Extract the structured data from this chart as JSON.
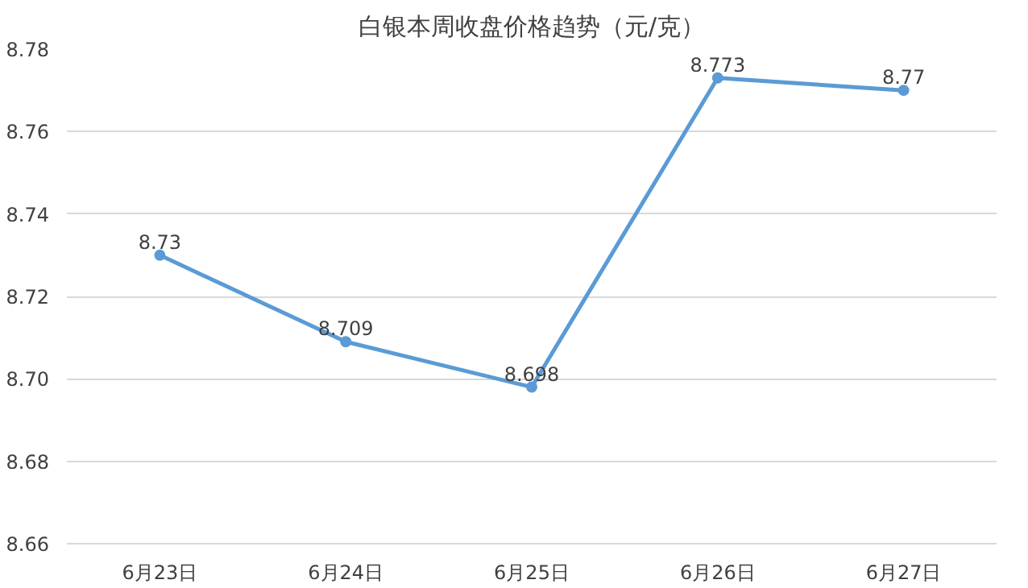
{
  "chart_data": {
    "type": "line",
    "title": "白银本周收盘价格趋势（元/克）",
    "categories": [
      "6月23日",
      "6月24日",
      "6月25日",
      "6月26日",
      "6月27日"
    ],
    "series": [
      {
        "color": "#5b9bd5",
        "values": [
          8.73,
          8.709,
          8.698,
          8.773,
          8.77
        ]
      }
    ],
    "ylim": [
      8.66,
      8.78
    ],
    "yticks": [
      8.66,
      8.68,
      {
        "value": 8.7,
        "label": "8.70"
      },
      8.72,
      8.74,
      8.76,
      8.78
    ],
    "grid": "y",
    "marker": "circle",
    "line_style": "solid",
    "data_labels": true
  }
}
